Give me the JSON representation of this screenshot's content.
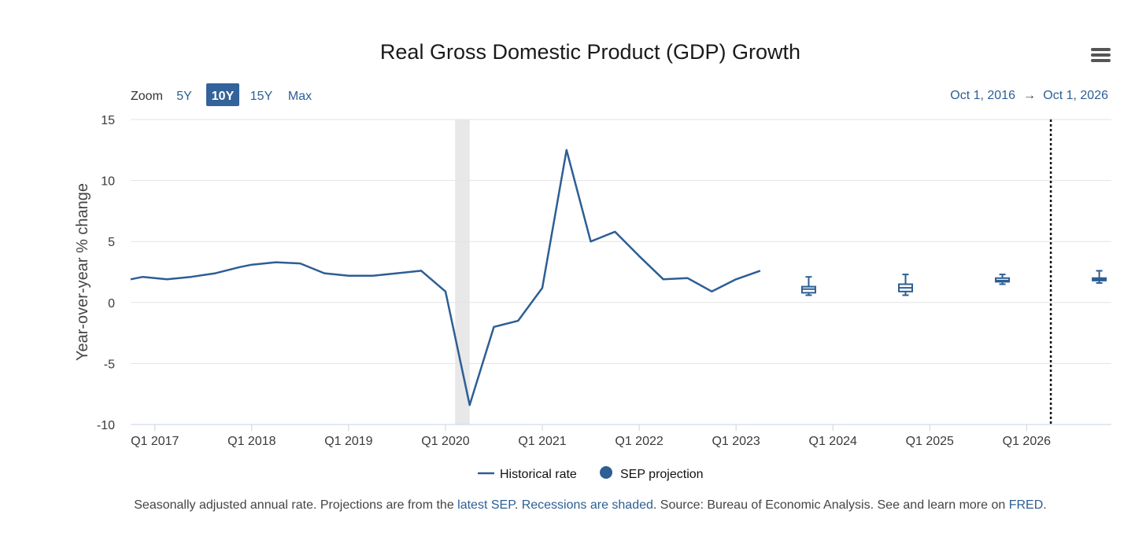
{
  "menu_icon": "hamburger-menu-icon",
  "colors": {
    "series": "#2d5e94",
    "grid": "#e3e3e3",
    "recession": "#e8e8e8",
    "active_button": "#34629a"
  },
  "zoom": {
    "label": "Zoom",
    "options": [
      "5Y",
      "10Y",
      "15Y",
      "Max"
    ],
    "active": "10Y"
  },
  "range": {
    "start": "Oct 1, 2016",
    "arrow": "→",
    "end": "Oct 1, 2026"
  },
  "footnote": {
    "text1": "Seasonally adjusted annual rate. Projections are from the ",
    "link1": "latest SEP",
    "text2": ". ",
    "link2": "Recessions are shaded",
    "text3": ". Source: Bureau of Economic Analysis. See and learn more on ",
    "link3": "FRED",
    "text4": "."
  },
  "chart_data": {
    "type": "line",
    "title": "Real Gross Domestic Product (GDP) Growth",
    "ylabel": "Year-over-year % change",
    "xlabel": "",
    "ylim": [
      -10,
      15
    ],
    "yticks": [
      15,
      10,
      5,
      0,
      -5,
      -10
    ],
    "xlim": [
      2016.75,
      2026.875
    ],
    "xticks": [
      {
        "x": 2017,
        "label": "Q1 2017"
      },
      {
        "x": 2018,
        "label": "Q1 2018"
      },
      {
        "x": 2019,
        "label": "Q1 2019"
      },
      {
        "x": 2020,
        "label": "Q1 2020"
      },
      {
        "x": 2021,
        "label": "Q1 2021"
      },
      {
        "x": 2022,
        "label": "Q1 2022"
      },
      {
        "x": 2023,
        "label": "Q1 2023"
      },
      {
        "x": 2024,
        "label": "Q1 2024"
      },
      {
        "x": 2025,
        "label": "Q1 2025"
      },
      {
        "x": 2026,
        "label": "Q1 2026"
      }
    ],
    "recession": [
      2020.1,
      2020.25
    ],
    "projection_marker_x": 2026.25,
    "legend": [
      "Historical rate",
      "SEP projection"
    ],
    "series": [
      {
        "name": "Historical rate",
        "x": [
          2016.75,
          2016.875,
          2017.125,
          2017.375,
          2017.625,
          2017.875,
          2018.0,
          2018.25,
          2018.5,
          2018.75,
          2019.0,
          2019.25,
          2019.5,
          2019.75,
          2020.0,
          2020.25,
          2020.5,
          2020.75,
          2021.0,
          2021.25,
          2021.5,
          2021.75,
          2022.0,
          2022.25,
          2022.5,
          2022.75,
          2023.0,
          2023.25
        ],
        "values": [
          1.9,
          2.1,
          1.9,
          2.1,
          2.4,
          2.9,
          3.1,
          3.3,
          3.2,
          2.4,
          2.2,
          2.2,
          2.4,
          2.6,
          0.9,
          -8.4,
          -2.0,
          -1.5,
          1.2,
          12.5,
          5.0,
          5.8,
          3.8,
          1.9,
          2.0,
          0.9,
          1.9,
          2.6
        ]
      },
      {
        "name": "SEP projection",
        "boxes": [
          {
            "x": 2023.75,
            "min": 0.6,
            "q1": 0.8,
            "median": 1.1,
            "q3": 1.3,
            "max": 2.1
          },
          {
            "x": 2024.75,
            "min": 0.6,
            "q1": 0.9,
            "median": 1.2,
            "q3": 1.5,
            "max": 2.3
          },
          {
            "x": 2025.75,
            "min": 1.5,
            "q1": 1.7,
            "median": 1.8,
            "q3": 2.0,
            "max": 2.3
          },
          {
            "x": 2026.75,
            "min": 1.6,
            "q1": 1.8,
            "median": 1.9,
            "q3": 2.0,
            "max": 2.6
          }
        ]
      }
    ]
  }
}
